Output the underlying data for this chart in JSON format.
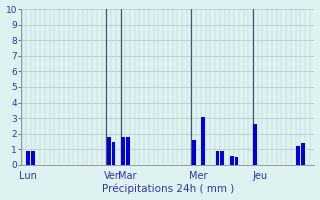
{
  "title": "",
  "xlabel": "Précipitations 24h ( mm )",
  "background_color": "#dff2f2",
  "bar_color": "#0000dd",
  "ylim": [
    0,
    10
  ],
  "yticks": [
    0,
    1,
    2,
    3,
    4,
    5,
    6,
    7,
    8,
    9,
    10
  ],
  "day_labels": [
    "Lun",
    "Ven",
    "Mar",
    "Mer",
    "Jeu"
  ],
  "day_tick_positions": [
    1,
    19,
    22,
    37,
    50
  ],
  "day_separator_positions": [
    0,
    18,
    21,
    36,
    49
  ],
  "bar_indices": [
    1,
    2,
    18,
    19,
    21,
    22,
    36,
    38,
    41,
    42,
    44,
    45,
    49,
    58,
    59
  ],
  "bar_values": [
    0.9,
    0.9,
    1.8,
    1.5,
    1.8,
    1.8,
    1.6,
    3.1,
    0.9,
    0.9,
    0.6,
    0.5,
    2.6,
    1.2,
    1.4
  ],
  "num_bars": 62,
  "grid_color": "#b0c8c8",
  "tick_color": "#3333aa",
  "label_color": "#3333aa",
  "spine_color": "#999999"
}
